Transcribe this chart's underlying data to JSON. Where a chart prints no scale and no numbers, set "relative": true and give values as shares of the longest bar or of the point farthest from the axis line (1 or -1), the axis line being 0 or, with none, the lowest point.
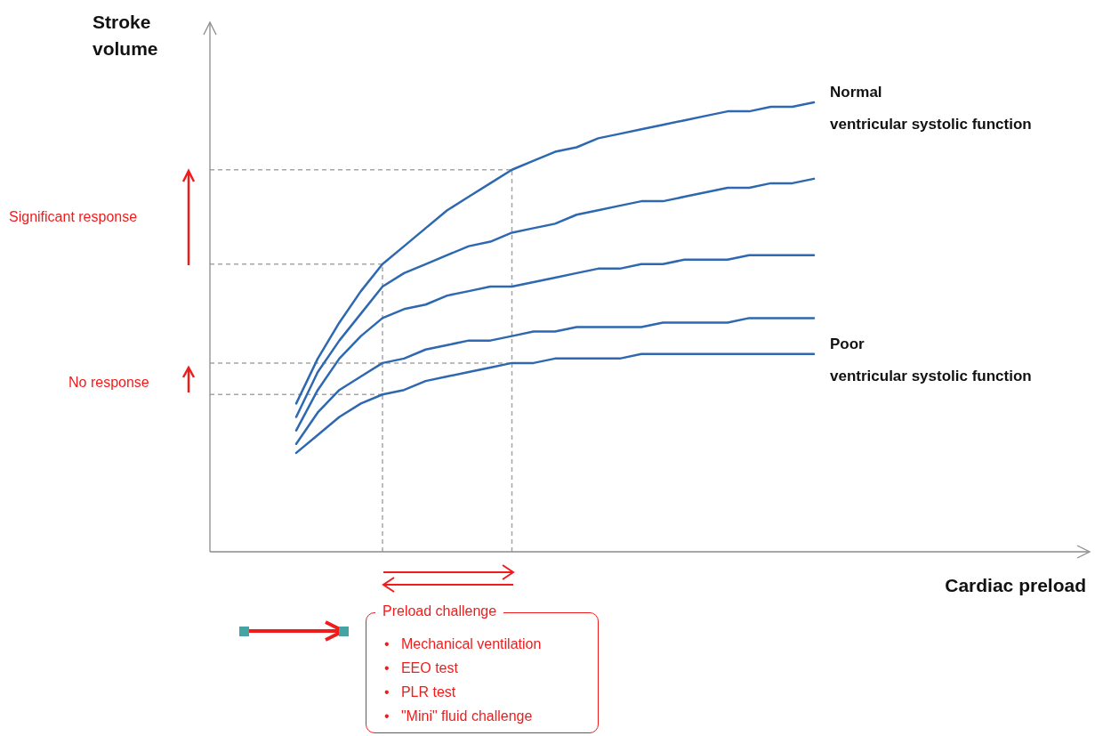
{
  "chart_data": {
    "type": "line",
    "relative": true,
    "tick_labels": false,
    "marker": "none",
    "line_style": "solid",
    "xlabel": "Cardiac preload",
    "ylabel": "Stroke volume",
    "categories": [
      null,
      null,
      null,
      null,
      null,
      null,
      null,
      null,
      null,
      null,
      null,
      null,
      null,
      null,
      null,
      null,
      null,
      null,
      null,
      null,
      null,
      null,
      null,
      null,
      null,
      null,
      null,
      null,
      null,
      null,
      null,
      null,
      null,
      null,
      null,
      null,
      null,
      null,
      null,
      null,
      null
    ],
    "series": [
      {
        "name": "Normal ventricular systolic function",
        "color": "#2e68b0",
        "values": [
          null,
          null,
          null,
          null,
          0.33,
          0.43,
          0.51,
          0.58,
          0.64,
          0.68,
          0.72,
          0.76,
          0.79,
          0.82,
          0.85,
          0.87,
          0.89,
          0.9,
          0.92,
          0.93,
          0.94,
          0.95,
          0.96,
          0.97,
          0.98,
          0.98,
          0.99,
          0.99,
          1,
          null,
          null,
          null,
          null,
          null,
          null,
          null,
          null,
          null,
          null,
          null,
          null
        ]
      },
      {
        "color": "#2e68b0",
        "values": [
          null,
          null,
          null,
          null,
          0.3,
          0.4,
          0.47,
          0.53,
          0.59,
          0.62,
          0.64,
          0.66,
          0.68,
          0.69,
          0.71,
          0.72,
          0.73,
          0.75,
          0.76,
          0.77,
          0.78,
          0.78,
          0.79,
          0.8,
          0.81,
          0.81,
          0.82,
          0.82,
          0.83,
          null,
          null,
          null,
          null,
          null,
          null,
          null,
          null,
          null,
          null,
          null,
          null
        ]
      },
      {
        "color": "#2e68b0",
        "values": [
          null,
          null,
          null,
          null,
          0.27,
          0.36,
          0.43,
          0.48,
          0.52,
          0.54,
          0.55,
          0.57,
          0.58,
          0.59,
          0.59,
          0.6,
          0.61,
          0.62,
          0.63,
          0.63,
          0.64,
          0.64,
          0.65,
          0.65,
          0.65,
          0.66,
          0.66,
          0.66,
          0.66,
          null,
          null,
          null,
          null,
          null,
          null,
          null,
          null,
          null,
          null,
          null,
          null
        ]
      },
      {
        "color": "#2e68b0",
        "values": [
          null,
          null,
          null,
          null,
          0.24,
          0.31,
          0.36,
          0.39,
          0.42,
          0.43,
          0.45,
          0.46,
          0.47,
          0.47,
          0.48,
          0.49,
          0.49,
          0.5,
          0.5,
          0.5,
          0.5,
          0.51,
          0.51,
          0.51,
          0.51,
          0.52,
          0.52,
          0.52,
          0.52,
          null,
          null,
          null,
          null,
          null,
          null,
          null,
          null,
          null,
          null,
          null,
          null
        ]
      },
      {
        "name": "Poor ventricular systolic function",
        "color": "#2e68b0",
        "values": [
          null,
          null,
          null,
          null,
          0.22,
          0.26,
          0.3,
          0.33,
          0.35,
          0.36,
          0.38,
          0.39,
          0.4,
          0.41,
          0.42,
          0.42,
          0.43,
          0.43,
          0.43,
          0.43,
          0.44,
          0.44,
          0.44,
          0.44,
          0.44,
          0.44,
          0.44,
          0.44,
          0.44,
          null,
          null,
          null,
          null,
          null,
          null,
          null,
          null,
          null,
          null,
          null,
          null
        ]
      }
    ],
    "ref_lines": [
      {
        "axis": "y",
        "value": 0.85,
        "color": "#a6a6a6",
        "line_style": "dashed"
      },
      {
        "axis": "y",
        "value": 0.64,
        "color": "#a6a6a6",
        "line_style": "dashed"
      },
      {
        "axis": "y",
        "value": 0.42,
        "color": "#a6a6a6",
        "line_style": "dashed"
      },
      {
        "axis": "y",
        "value": 0.35,
        "color": "#a6a6a6",
        "line_style": "dashed"
      }
    ],
    "annotations": [
      "Significant response",
      "No response",
      "Preload challenge",
      "•   Mechanical ventilation",
      "•   EEO test",
      "•   PLR test",
      "•   \"Mini\" fluid challenge"
    ]
  }
}
